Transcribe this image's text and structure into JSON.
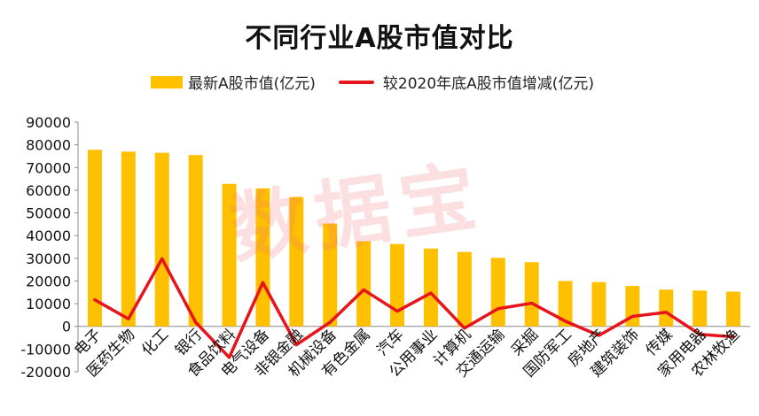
{
  "chart_data": {
    "type": "bar",
    "title": "不同行业A股市值对比",
    "categories": [
      "电子",
      "医药生物",
      "化工",
      "银行",
      "食品饮料",
      "电气设备",
      "非银金融",
      "机械设备",
      "有色金属",
      "汽车",
      "公用事业",
      "计算机",
      "交通运输",
      "采掘",
      "国防军工",
      "房地产",
      "建筑装饰",
      "传媒",
      "家用电器",
      "农林牧渔"
    ],
    "series": [
      {
        "name": "最新A股市值(亿元)",
        "type": "bar",
        "color": "#FFC000",
        "values": [
          77800,
          77000,
          76500,
          75500,
          62800,
          60800,
          57000,
          45300,
          37500,
          36300,
          34300,
          32800,
          30200,
          28300,
          20000,
          19500,
          17800,
          16200,
          15800,
          15300
        ]
      },
      {
        "name": "较2020年底A股市值增减(亿元)",
        "type": "line",
        "color": "#E8141C",
        "values": [
          11700,
          3300,
          29800,
          1800,
          -13700,
          19300,
          -8100,
          1800,
          16100,
          6700,
          14700,
          -800,
          7800,
          10200,
          2300,
          -4000,
          4400,
          6200,
          -3500,
          -4600
        ]
      }
    ],
    "yticks": [
      "90000",
      "80000",
      "70000",
      "60000",
      "50000",
      "40000",
      "30000",
      "20000",
      "10000",
      "0",
      "-10000",
      "-20000"
    ],
    "ylim": [
      -20000,
      90000
    ],
    "grid": false,
    "legend_position": "top"
  },
  "watermark": "数据宝"
}
